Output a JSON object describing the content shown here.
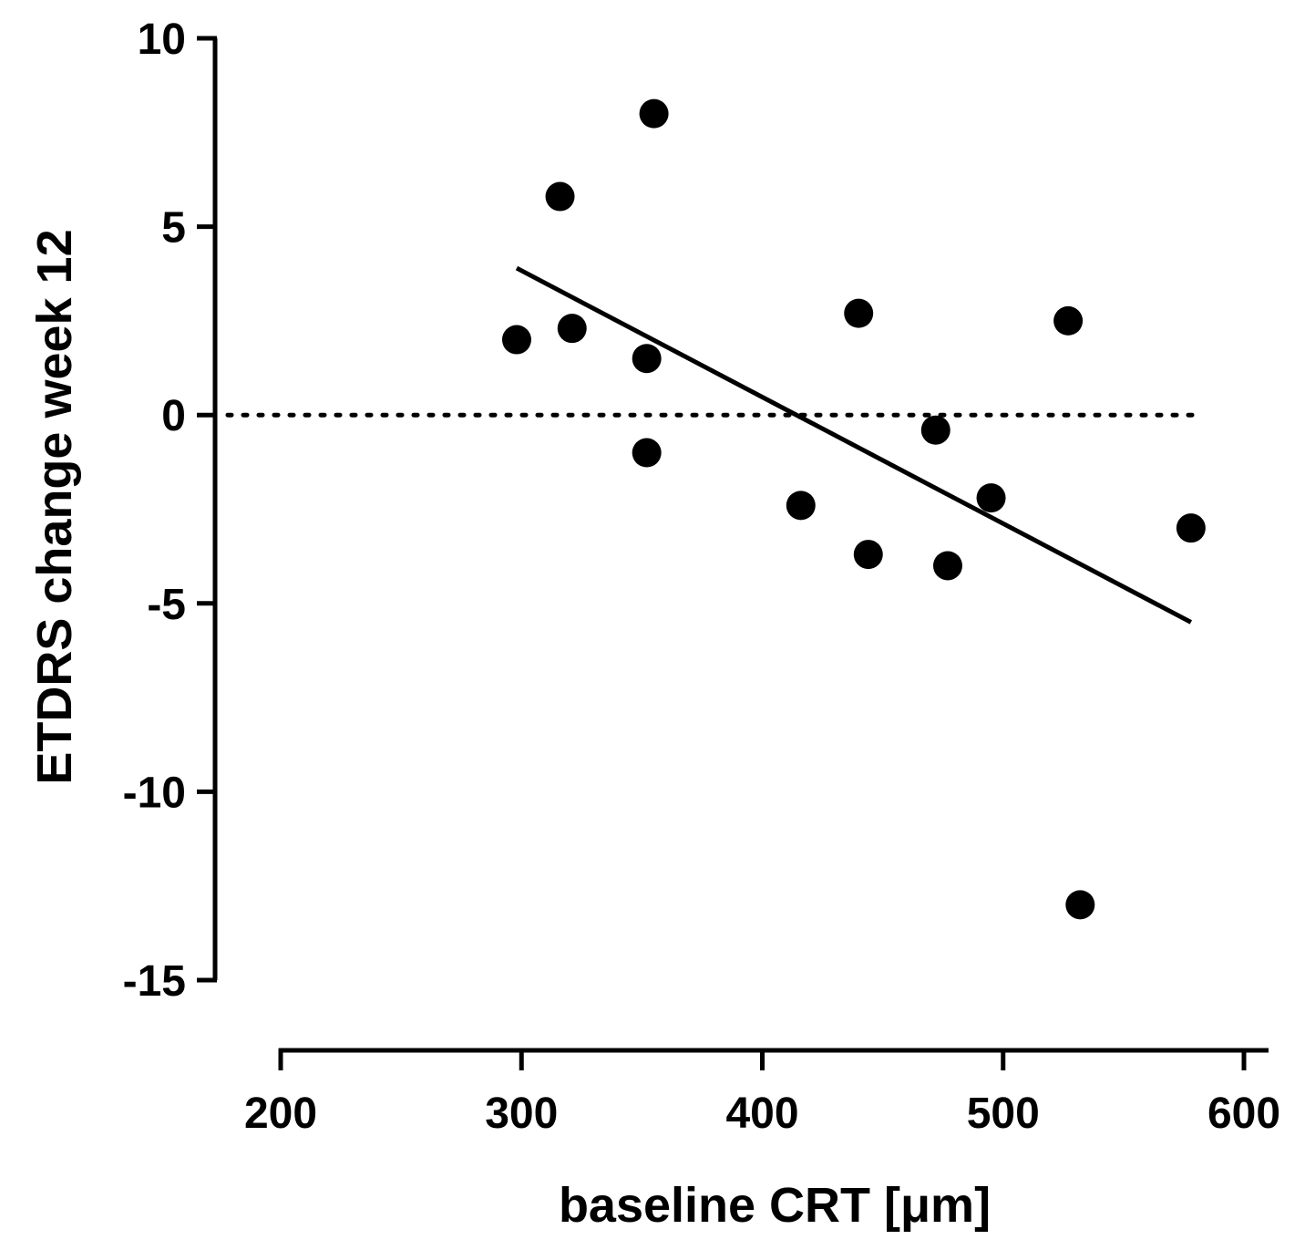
{
  "chart_data": {
    "type": "scatter",
    "title": "",
    "xlabel": "baseline CRT [μm]",
    "ylabel": "ETDRS change week 12",
    "xlim": [
      200,
      600
    ],
    "ylim": [
      -15,
      10
    ],
    "x_ticks": [
      200,
      300,
      400,
      500,
      600
    ],
    "y_ticks": [
      10,
      5,
      0,
      -5,
      -10,
      -15
    ],
    "x_tick_labels": [
      "200",
      "300",
      "400",
      "500",
      "600"
    ],
    "y_tick_labels": [
      "10",
      "5",
      "0",
      "-5",
      "-10",
      "-15"
    ],
    "points": [
      {
        "x": 298,
        "y": 2.0
      },
      {
        "x": 316,
        "y": 5.8
      },
      {
        "x": 321,
        "y": 2.3
      },
      {
        "x": 352,
        "y": 1.5
      },
      {
        "x": 352,
        "y": -1.0
      },
      {
        "x": 355,
        "y": 8.0
      },
      {
        "x": 416,
        "y": -2.4
      },
      {
        "x": 440,
        "y": 2.7
      },
      {
        "x": 444,
        "y": -3.7
      },
      {
        "x": 472,
        "y": -0.4
      },
      {
        "x": 477,
        "y": -4.0
      },
      {
        "x": 495,
        "y": -2.2
      },
      {
        "x": 527,
        "y": 2.5
      },
      {
        "x": 532,
        "y": -13.0
      },
      {
        "x": 578,
        "y": -3.0
      }
    ],
    "regression_line": {
      "x": [
        298,
        578
      ],
      "y": [
        3.9,
        -5.5
      ]
    },
    "reference_line": {
      "y": 0,
      "style": "dotted"
    },
    "grid": false,
    "legend": "none",
    "color": "#000000"
  }
}
